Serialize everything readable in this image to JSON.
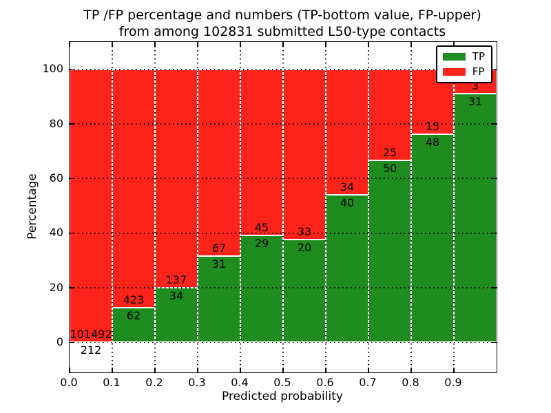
{
  "figure": {
    "title_line1": "TP /FP percentage and numbers (TP-bottom value, FP-upper)",
    "title_line2": "from among 102831 submitted L50-type contacts"
  },
  "chart_data": {
    "type": "bar",
    "stacked": true,
    "normalized_to_percent": true,
    "title": "TP /FP percentage and numbers (TP-bottom value, FP-upper) from among 102831 submitted L50-type contacts",
    "xlabel": "Predicted probability",
    "ylabel": "Percentage",
    "xlim": [
      0.0,
      1.0
    ],
    "ylim": [
      -11,
      110
    ],
    "bar_width": 0.1,
    "bar_starts": [
      0.0,
      0.1,
      0.2,
      0.3,
      0.4,
      0.5,
      0.6,
      0.7,
      0.8,
      0.9
    ],
    "x_tick_labels": [
      "0.0",
      "0.1",
      "0.2",
      "0.3",
      "0.4",
      "0.5",
      "0.6",
      "0.7",
      "0.8",
      "0.9"
    ],
    "y_ticks": [
      0,
      20,
      40,
      60,
      80,
      100
    ],
    "series": [
      {
        "name": "TP",
        "color": "#1e8c1e",
        "counts": [
          212,
          62,
          34,
          31,
          29,
          20,
          40,
          50,
          48,
          31
        ]
      },
      {
        "name": "FP",
        "color": "#fb231a",
        "counts": [
          101492,
          423,
          137,
          67,
          45,
          33,
          34,
          25,
          15,
          3
        ]
      }
    ],
    "tp_percent": [
      0.21,
      12.78,
      19.88,
      31.63,
      39.19,
      37.74,
      54.05,
      66.67,
      76.19,
      91.18
    ],
    "grid": {
      "style": "dotted",
      "color": "#000000",
      "on": true
    },
    "legend_position": "upper right",
    "bar_edge_color": "#ffffff"
  }
}
